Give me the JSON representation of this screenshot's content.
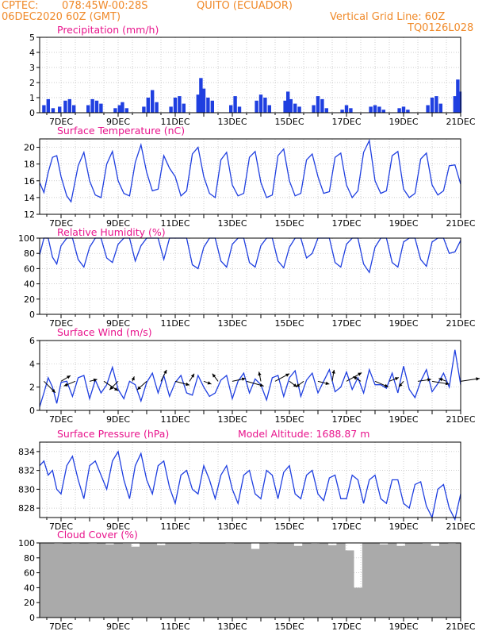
{
  "header": {
    "source": "CPTEC:",
    "coords": "078:45W-00:28S",
    "location": "QUITO (ECUADOR)",
    "run_date": "06DEC2020 60Z (GMT)",
    "grid_note": "Vertical Grid Line: 60Z",
    "code": "TQ0126L028"
  },
  "colors": {
    "header": "#f08a2a",
    "title": "#e8148c",
    "series": "#1f3fe0",
    "cloud": "#aaaaaa",
    "grid": "#bbbbbb"
  },
  "chart_data": [
    {
      "type": "bar",
      "title": "Precipitation (mm/h)",
      "ylim": [
        0,
        5
      ],
      "yticks": [
        0,
        1,
        2,
        3,
        4,
        5
      ],
      "x_tick_labels": [
        "7DEC",
        "9DEC",
        "11DEC",
        "13DEC",
        "15DEC",
        "17DEC",
        "19DEC",
        "21DEC"
      ],
      "x_range_days": [
        6.25,
        21.0
      ],
      "grid": true,
      "series": [
        {
          "x": [
            6.4,
            6.55,
            6.72,
            6.95,
            7.15,
            7.3,
            7.45,
            7.95,
            8.1,
            8.25,
            8.4,
            8.9,
            9.05,
            9.15,
            9.3,
            9.9,
            10.05,
            10.2,
            10.35,
            10.85,
            11.0,
            11.15,
            11.3,
            11.8,
            11.9,
            12.0,
            12.15,
            12.3,
            12.95,
            13.1,
            13.25,
            13.85,
            14.0,
            14.15,
            14.3,
            14.85,
            14.95,
            15.05,
            15.2,
            15.35,
            15.85,
            16.0,
            16.15,
            16.3,
            16.85,
            17.0,
            17.15,
            17.85,
            18.0,
            18.15,
            18.3,
            18.85,
            19.0,
            19.15,
            19.85,
            20.0,
            20.15,
            20.3,
            20.8,
            20.9,
            20.97
          ],
          "y": [
            0.5,
            0.9,
            0.3,
            0.4,
            0.8,
            0.9,
            0.5,
            0.5,
            0.9,
            0.8,
            0.6,
            0.3,
            0.5,
            0.7,
            0.3,
            0.4,
            1.0,
            1.5,
            0.7,
            0.4,
            1.0,
            1.1,
            0.6,
            1.2,
            2.3,
            1.6,
            1.0,
            0.8,
            0.5,
            1.1,
            0.4,
            0.8,
            1.2,
            1.0,
            0.5,
            0.8,
            1.4,
            0.9,
            0.6,
            0.4,
            0.5,
            1.1,
            0.9,
            0.3,
            0.2,
            0.5,
            0.3,
            0.4,
            0.5,
            0.4,
            0.2,
            0.3,
            0.4,
            0.2,
            0.5,
            1.0,
            1.1,
            0.6,
            1.1,
            2.2,
            1.4
          ]
        }
      ]
    },
    {
      "type": "line",
      "title": "Surface Temperature (nC)",
      "ylim": [
        12,
        21
      ],
      "yticks": [
        12,
        14,
        16,
        18,
        20
      ],
      "x_tick_labels": [
        "7DEC",
        "9DEC",
        "11DEC",
        "13DEC",
        "15DEC",
        "17DEC",
        "19DEC",
        "21DEC"
      ],
      "grid": true,
      "series": [
        {
          "x": [
            6.25,
            6.4,
            6.55,
            6.7,
            6.85,
            7.0,
            7.2,
            7.35,
            7.6,
            7.8,
            8.0,
            8.2,
            8.4,
            8.6,
            8.8,
            9.0,
            9.2,
            9.4,
            9.6,
            9.8,
            10.0,
            10.2,
            10.4,
            10.6,
            10.8,
            11.0,
            11.2,
            11.4,
            11.6,
            11.8,
            12.0,
            12.2,
            12.4,
            12.6,
            12.8,
            13.0,
            13.2,
            13.4,
            13.6,
            13.8,
            14.0,
            14.2,
            14.4,
            14.6,
            14.8,
            15.0,
            15.2,
            15.4,
            15.6,
            15.8,
            16.0,
            16.2,
            16.4,
            16.6,
            16.8,
            17.0,
            17.2,
            17.4,
            17.6,
            17.8,
            18.0,
            18.2,
            18.4,
            18.6,
            18.8,
            19.0,
            19.2,
            19.4,
            19.6,
            19.8,
            20.0,
            20.2,
            20.4,
            20.6,
            20.8,
            21.0
          ],
          "y": [
            15.8,
            14.6,
            17.0,
            18.8,
            19.0,
            16.5,
            14.2,
            13.5,
            17.8,
            19.4,
            16.0,
            14.3,
            14.0,
            18.0,
            19.5,
            16.0,
            14.5,
            14.2,
            18.2,
            20.3,
            17.0,
            14.8,
            15.0,
            19.0,
            17.5,
            16.5,
            14.2,
            14.8,
            19.2,
            20.0,
            16.5,
            14.5,
            14.0,
            18.5,
            19.4,
            15.5,
            14.2,
            14.5,
            18.8,
            19.5,
            15.8,
            14.0,
            14.3,
            19.0,
            19.8,
            16.0,
            14.2,
            14.5,
            18.5,
            19.2,
            16.5,
            14.5,
            14.7,
            18.8,
            19.3,
            15.5,
            14.0,
            14.8,
            19.4,
            20.8,
            16.0,
            14.5,
            14.8,
            19.0,
            19.5,
            15.0,
            14.0,
            14.5,
            18.6,
            19.3,
            15.5,
            14.3,
            14.8,
            17.8,
            17.9,
            15.6
          ]
        }
      ]
    },
    {
      "type": "line",
      "title": "Relative Humidity (%)",
      "ylim": [
        0,
        100
      ],
      "yticks": [
        0,
        20,
        40,
        60,
        80,
        100
      ],
      "x_tick_labels": [
        "7DEC",
        "9DEC",
        "11DEC",
        "13DEC",
        "15DEC",
        "17DEC",
        "19DEC",
        "21DEC"
      ],
      "grid": true,
      "series": [
        {
          "x": [
            6.25,
            6.4,
            6.55,
            6.7,
            6.85,
            7.0,
            7.2,
            7.4,
            7.6,
            7.8,
            8.0,
            8.2,
            8.4,
            8.6,
            8.8,
            9.0,
            9.2,
            9.4,
            9.6,
            9.8,
            10.0,
            10.2,
            10.4,
            10.6,
            10.8,
            11.0,
            11.2,
            11.4,
            11.6,
            11.8,
            12.0,
            12.2,
            12.4,
            12.6,
            12.8,
            13.0,
            13.2,
            13.4,
            13.6,
            13.8,
            14.0,
            14.2,
            14.4,
            14.6,
            14.8,
            15.0,
            15.2,
            15.4,
            15.6,
            15.8,
            16.0,
            16.2,
            16.4,
            16.6,
            16.8,
            17.0,
            17.2,
            17.4,
            17.6,
            17.8,
            18.0,
            18.2,
            18.4,
            18.6,
            18.8,
            19.0,
            19.2,
            19.4,
            19.6,
            19.8,
            20.0,
            20.2,
            20.4,
            20.6,
            20.8,
            21.0
          ],
          "y": [
            78,
            100,
            100,
            75,
            66,
            90,
            100,
            100,
            72,
            62,
            88,
            100,
            100,
            74,
            68,
            92,
            100,
            100,
            70,
            90,
            100,
            100,
            100,
            72,
            100,
            100,
            100,
            100,
            65,
            60,
            88,
            100,
            100,
            70,
            62,
            92,
            100,
            100,
            68,
            62,
            90,
            100,
            100,
            70,
            61,
            88,
            100,
            100,
            74,
            80,
            100,
            100,
            100,
            68,
            62,
            92,
            100,
            100,
            66,
            55,
            88,
            100,
            100,
            68,
            62,
            95,
            100,
            100,
            72,
            63,
            95,
            100,
            100,
            80,
            82,
            97
          ]
        }
      ]
    },
    {
      "type": "line",
      "title": "Surface Wind (m/s)",
      "ylim": [
        0,
        6
      ],
      "yticks": [
        0,
        2,
        4,
        6
      ],
      "x_tick_labels": [
        "7DEC",
        "9DEC",
        "11DEC",
        "13DEC",
        "15DEC",
        "17DEC",
        "19DEC",
        "21DEC"
      ],
      "grid": true,
      "series": [
        {
          "x": [
            6.25,
            6.4,
            6.55,
            6.7,
            6.85,
            7.0,
            7.2,
            7.4,
            7.6,
            7.8,
            8.0,
            8.2,
            8.4,
            8.6,
            8.8,
            9.0,
            9.2,
            9.4,
            9.6,
            9.8,
            10.0,
            10.2,
            10.4,
            10.6,
            10.8,
            11.0,
            11.2,
            11.4,
            11.6,
            11.8,
            12.0,
            12.2,
            12.4,
            12.6,
            12.8,
            13.0,
            13.2,
            13.4,
            13.6,
            13.8,
            14.0,
            14.2,
            14.4,
            14.6,
            14.8,
            15.0,
            15.2,
            15.4,
            15.6,
            15.8,
            16.0,
            16.2,
            16.4,
            16.6,
            16.8,
            17.0,
            17.2,
            17.4,
            17.6,
            17.8,
            18.0,
            18.2,
            18.4,
            18.6,
            18.8,
            19.0,
            19.2,
            19.4,
            19.6,
            19.8,
            20.0,
            20.2,
            20.4,
            20.6,
            20.8,
            21.0
          ],
          "y": [
            0.3,
            1.5,
            2.8,
            2.0,
            0.6,
            2.4,
            2.5,
            1.2,
            2.8,
            3.0,
            1.0,
            2.6,
            1.5,
            2.2,
            3.7,
            1.8,
            1.0,
            2.5,
            2.2,
            0.8,
            2.4,
            3.2,
            1.5,
            3.0,
            1.2,
            2.4,
            3.0,
            1.5,
            1.3,
            3.0,
            2.0,
            1.2,
            1.5,
            2.6,
            3.0,
            1.0,
            2.5,
            3.2,
            1.5,
            2.7,
            2.2,
            0.9,
            2.8,
            3.0,
            1.2,
            2.8,
            3.4,
            1.2,
            2.6,
            3.2,
            1.5,
            2.5,
            3.5,
            1.6,
            2.0,
            3.3,
            1.8,
            2.8,
            1.5,
            3.5,
            2.2,
            2.2,
            1.9,
            3.2,
            1.5,
            3.8,
            1.8,
            1.1,
            2.5,
            3.5,
            1.6,
            2.3,
            3.2,
            2.0,
            5.2,
            2.2
          ]
        }
      ],
      "wind_vectors": {
        "x": [
          6.4,
          7.0,
          7.5,
          8.0,
          8.5,
          9.0,
          9.5,
          10.0,
          10.5,
          11.0,
          11.5,
          12.0,
          12.5,
          13.0,
          13.5,
          14.0,
          14.5,
          15.0,
          15.5,
          16.0,
          16.5,
          17.0,
          17.5,
          18.0,
          18.5,
          19.0,
          19.5,
          20.0,
          20.5,
          21.0
        ],
        "u": [
          1.2,
          1.0,
          -1.2,
          0.8,
          1.5,
          -0.9,
          0.2,
          -1.0,
          0.6,
          1.5,
          0.5,
          0.8,
          -0.6,
          1.4,
          1.8,
          -0.2,
          1.5,
          0.8,
          -0.8,
          1.2,
          0.2,
          1.6,
          -0.8,
          1.4,
          1.0,
          -0.5,
          1.4,
          1.8,
          -0.8,
          2.0
        ],
        "v": [
          -1.2,
          0.6,
          -0.5,
          0.2,
          -1.0,
          -0.9,
          0.5,
          -0.9,
          1.2,
          -0.4,
          0.8,
          -0.3,
          0.8,
          0.3,
          -0.5,
          1.0,
          0.8,
          -0.6,
          -0.6,
          -0.3,
          1.2,
          0.9,
          0.5,
          -0.6,
          0.4,
          -0.6,
          0.2,
          -0.3,
          0.3,
          0.3
        ]
      }
    },
    {
      "type": "line",
      "title": "Surface Pressure (hPa)",
      "annotation": "Model Altitude: 1688.87 m",
      "ylim": [
        827,
        835
      ],
      "yticks": [
        828,
        830,
        832,
        834
      ],
      "x_tick_labels": [
        "7DEC",
        "9DEC",
        "11DEC",
        "13DEC",
        "15DEC",
        "17DEC",
        "19DEC",
        "21DEC"
      ],
      "grid": true,
      "series": [
        {
          "x": [
            6.25,
            6.4,
            6.55,
            6.7,
            6.85,
            7.0,
            7.2,
            7.4,
            7.6,
            7.8,
            8.0,
            8.2,
            8.4,
            8.6,
            8.8,
            9.0,
            9.2,
            9.4,
            9.6,
            9.8,
            10.0,
            10.2,
            10.4,
            10.6,
            10.8,
            11.0,
            11.2,
            11.4,
            11.6,
            11.8,
            12.0,
            12.2,
            12.4,
            12.6,
            12.8,
            13.0,
            13.2,
            13.4,
            13.6,
            13.8,
            14.0,
            14.2,
            14.4,
            14.6,
            14.8,
            15.0,
            15.2,
            15.4,
            15.6,
            15.8,
            16.0,
            16.2,
            16.4,
            16.6,
            16.8,
            17.0,
            17.2,
            17.4,
            17.6,
            17.8,
            18.0,
            18.2,
            18.4,
            18.6,
            18.8,
            19.0,
            19.2,
            19.4,
            19.6,
            19.8,
            20.0,
            20.2,
            20.4,
            20.6,
            20.8,
            21.0
          ],
          "y": [
            832.5,
            833.0,
            831.5,
            832.0,
            830.0,
            829.5,
            832.5,
            833.5,
            831.0,
            829.0,
            832.5,
            833.0,
            831.5,
            830.0,
            833.0,
            834.0,
            831.0,
            829.0,
            832.5,
            833.8,
            831.0,
            829.5,
            832.5,
            833.0,
            830.2,
            828.5,
            831.5,
            832.0,
            830.0,
            829.5,
            832.5,
            831.0,
            829.0,
            831.5,
            832.5,
            830.0,
            828.5,
            831.5,
            832.0,
            829.5,
            829.0,
            832.0,
            831.5,
            829.0,
            831.8,
            832.5,
            829.5,
            829.0,
            831.5,
            832.0,
            829.5,
            828.8,
            831.2,
            831.5,
            829.0,
            829.0,
            831.5,
            831.0,
            828.5,
            831.0,
            831.5,
            829.0,
            828.5,
            831.0,
            831.0,
            828.5,
            828.0,
            830.5,
            830.8,
            828.2,
            827.0,
            830.0,
            830.5,
            828.0,
            826.8,
            829.5
          ]
        }
      ]
    },
    {
      "type": "bar",
      "title": "Cloud Cover (%)",
      "ylim": [
        0,
        100
      ],
      "yticks": [
        0,
        20,
        40,
        60,
        80,
        100
      ],
      "x_tick_labels": [
        "7DEC",
        "9DEC",
        "11DEC",
        "13DEC",
        "15DEC",
        "17DEC",
        "19DEC",
        "21DEC"
      ],
      "grid": true,
      "series": [
        {
          "x": [
            6.3,
            6.6,
            6.9,
            7.2,
            7.5,
            7.8,
            8.1,
            8.4,
            8.7,
            9.0,
            9.3,
            9.6,
            9.9,
            10.2,
            10.5,
            10.8,
            11.1,
            11.4,
            11.7,
            12.0,
            12.3,
            12.6,
            12.9,
            13.2,
            13.5,
            13.8,
            14.1,
            14.4,
            14.7,
            15.0,
            15.3,
            15.6,
            15.9,
            16.2,
            16.5,
            16.8,
            17.1,
            17.4,
            17.7,
            18.0,
            18.3,
            18.6,
            18.9,
            19.2,
            19.5,
            19.8,
            20.1,
            20.4,
            20.7,
            20.95
          ],
          "y": [
            100,
            100,
            99,
            100,
            99,
            100,
            99,
            100,
            98,
            100,
            99,
            95,
            100,
            100,
            97,
            100,
            100,
            100,
            99,
            100,
            100,
            100,
            99,
            100,
            100,
            92,
            100,
            99,
            100,
            100,
            96,
            100,
            99,
            100,
            97,
            100,
            90,
            40,
            100,
            100,
            98,
            100,
            96,
            100,
            100,
            99,
            96,
            100,
            99,
            100
          ]
        }
      ]
    }
  ]
}
